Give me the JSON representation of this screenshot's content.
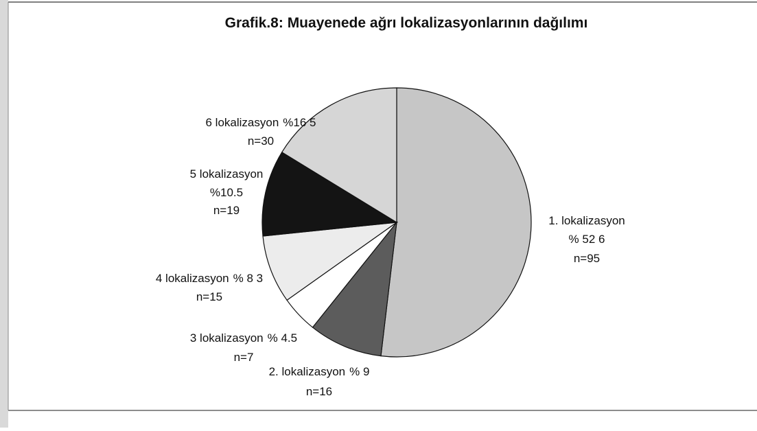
{
  "chart_data": {
    "type": "pie",
    "title": "Grafik.8: Muayenede ağrı lokalizasyonlarının dağılımı",
    "categories": [
      "1. lokalizasyon",
      "2. lokalizasyon",
      "3 lokalizasyon",
      "4 lokalizasyon",
      "5 lokalizasyon",
      "6 lokalizasyon"
    ],
    "values": [
      52.6,
      9,
      4.5,
      8.3,
      10.5,
      16.5
    ],
    "value_labels": [
      "% 52 6",
      "% 9",
      "% 4.5",
      "% 8 3",
      "%10.5",
      "%16 5"
    ],
    "count_labels": [
      "n=95",
      "n=16",
      "n=7",
      "n=15",
      "n=19",
      "n=30"
    ],
    "colors": [
      "#c6c6c6",
      "#5c5c5c",
      "#ffffff",
      "#ececec",
      "#141414",
      "#d6d6d6"
    ]
  }
}
